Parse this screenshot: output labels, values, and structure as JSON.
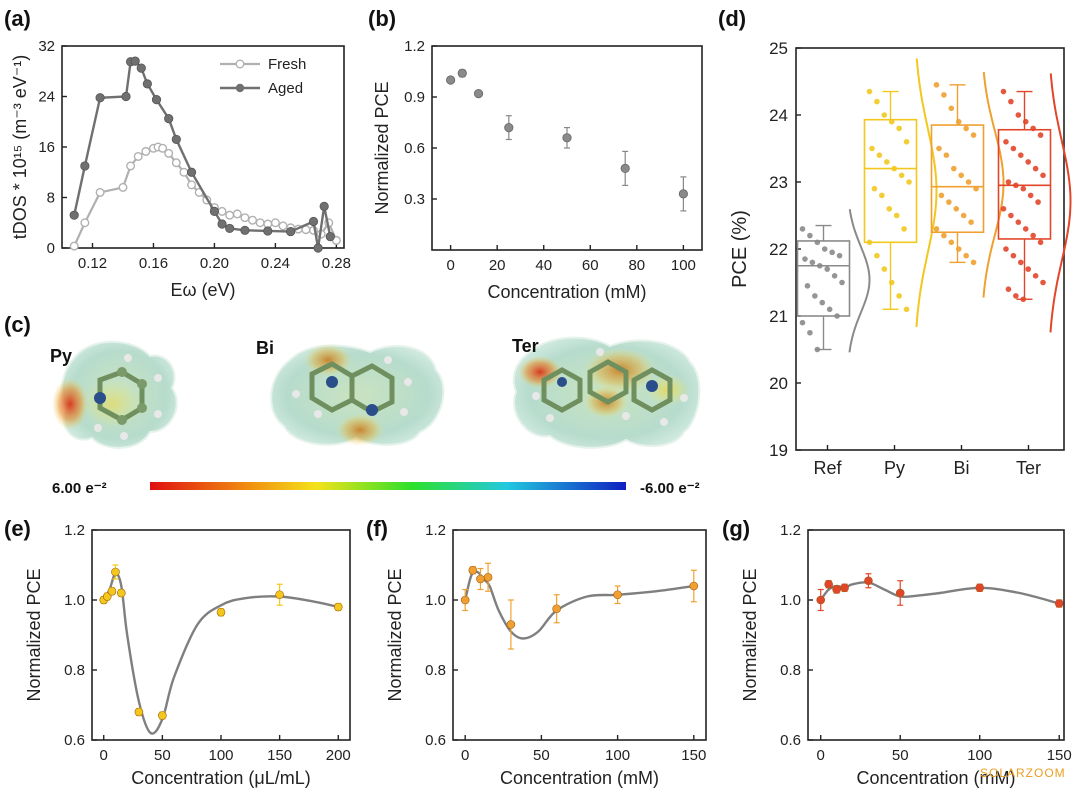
{
  "panels": {
    "a": "(a)",
    "b": "(b)",
    "c": "(c)",
    "d": "(d)",
    "e": "(e)",
    "f": "(f)",
    "g": "(g)"
  },
  "molecules": {
    "py": "Py",
    "bi": "Bi",
    "ter": "Ter"
  },
  "colorbar": {
    "left": "6.00 e⁻²",
    "right": "-6.00 e⁻²"
  },
  "watermark": "SOLARZOOM",
  "colors": {
    "gray_light": "#b0b0b0",
    "gray_dark": "#707070",
    "yellow": "#f2c81e",
    "orange": "#f0a030",
    "red": "#e2462a",
    "curve": "#7f7f7f",
    "ref": "#8a8a8a"
  },
  "chart_data": [
    {
      "id": "a",
      "type": "line",
      "xlabel": "Eω (eV)",
      "ylabel": "tDOS * 10¹⁵ (m⁻³ eV⁻¹)",
      "xlim": [
        0.1,
        0.285
      ],
      "ylim": [
        0,
        32
      ],
      "xticks": [
        0.12,
        0.16,
        0.2,
        0.24,
        0.28
      ],
      "xtick_labels": [
        "0.12",
        "0.16",
        "0.20",
        "0.24",
        "0.28"
      ],
      "yticks": [
        0,
        8,
        16,
        24,
        32
      ],
      "legend_position": "top-right",
      "series": [
        {
          "name": "Fresh",
          "x": [
            0.108,
            0.115,
            0.125,
            0.14,
            0.145,
            0.15,
            0.155,
            0.16,
            0.163,
            0.166,
            0.17,
            0.175,
            0.18,
            0.185,
            0.19,
            0.195,
            0.2,
            0.205,
            0.21,
            0.215,
            0.22,
            0.225,
            0.23,
            0.235,
            0.24,
            0.245,
            0.25,
            0.255,
            0.26,
            0.265,
            0.27,
            0.275,
            0.28
          ],
          "y": [
            0.3,
            4,
            8.8,
            9.6,
            13,
            14.5,
            15.3,
            15.8,
            16,
            15.8,
            15,
            13.5,
            12,
            10,
            8.8,
            7.6,
            6.4,
            5.8,
            5.2,
            5.4,
            4.8,
            4.4,
            4,
            3.8,
            4,
            3.5,
            3.2,
            3,
            2.9,
            2.8,
            2.2,
            4,
            1.2
          ]
        },
        {
          "name": "Aged",
          "x": [
            0.108,
            0.115,
            0.125,
            0.142,
            0.145,
            0.148,
            0.152,
            0.156,
            0.162,
            0.17,
            0.175,
            0.185,
            0.2,
            0.205,
            0.21,
            0.22,
            0.235,
            0.25,
            0.265,
            0.268,
            0.272,
            0.276
          ],
          "y": [
            5.2,
            13,
            23.8,
            24,
            29.5,
            29.6,
            28.5,
            26,
            23.5,
            20.5,
            17.2,
            12,
            5.8,
            3.8,
            3.1,
            2.8,
            2.7,
            2.6,
            4.2,
            0,
            6.6,
            1.8
          ]
        }
      ]
    },
    {
      "id": "b",
      "type": "scatter",
      "xlabel": "Concentration (mM)",
      "ylabel": "Normalized PCE",
      "xlim": [
        -8,
        108
      ],
      "ylim": [
        0.0,
        1.2
      ],
      "xticks": [
        0,
        20,
        40,
        60,
        80,
        100
      ],
      "yticks": [
        0.3,
        0.6,
        0.9,
        1.2
      ],
      "ytick_labels": [
        "0.3",
        "0.6",
        "0.9",
        "1.2"
      ],
      "x": [
        0,
        5,
        12,
        25,
        50,
        75,
        100
      ],
      "y": [
        1.0,
        1.04,
        0.92,
        0.72,
        0.66,
        0.48,
        0.33
      ],
      "err": [
        0.01,
        0.02,
        0.01,
        0.07,
        0.06,
        0.1,
        0.1
      ]
    },
    {
      "id": "d",
      "type": "box",
      "ylabel": "PCE (%)",
      "categories": [
        "Ref",
        "Py",
        "Bi",
        "Ter"
      ],
      "ylim": [
        19,
        25
      ],
      "yticks": [
        19,
        20,
        21,
        22,
        23,
        24,
        25
      ],
      "boxes": [
        {
          "name": "Ref",
          "q1": 21.0,
          "median": 21.75,
          "q3": 22.12,
          "whisker_low": 20.5,
          "whisker_high": 22.35,
          "points": [
            22.3,
            22.2,
            22.1,
            22.0,
            21.95,
            21.9,
            21.85,
            21.8,
            21.75,
            21.7,
            21.6,
            21.5,
            21.45,
            21.3,
            21.2,
            21.1,
            21.0,
            20.9,
            20.75,
            20.5
          ]
        },
        {
          "name": "Py",
          "q1": 22.1,
          "median": 23.2,
          "q3": 23.93,
          "whisker_low": 21.1,
          "whisker_high": 24.35,
          "points": [
            24.35,
            24.2,
            24.0,
            23.9,
            23.8,
            23.6,
            23.5,
            23.4,
            23.3,
            23.2,
            23.1,
            23.0,
            22.9,
            22.8,
            22.6,
            22.5,
            22.3,
            22.1,
            21.9,
            21.7,
            21.5,
            21.3,
            21.1
          ]
        },
        {
          "name": "Bi",
          "q1": 22.25,
          "median": 22.93,
          "q3": 23.85,
          "whisker_low": 21.8,
          "whisker_high": 24.45,
          "points": [
            24.45,
            24.3,
            24.1,
            23.9,
            23.8,
            23.7,
            23.5,
            23.4,
            23.2,
            23.1,
            23.0,
            22.9,
            22.8,
            22.7,
            22.6,
            22.5,
            22.4,
            22.3,
            22.2,
            22.1,
            22.0,
            21.9,
            21.8
          ]
        },
        {
          "name": "Ter",
          "q1": 22.15,
          "median": 22.95,
          "q3": 23.78,
          "whisker_low": 21.25,
          "whisker_high": 24.35,
          "points": [
            24.35,
            24.2,
            24.0,
            23.9,
            23.8,
            23.7,
            23.6,
            23.5,
            23.4,
            23.3,
            23.2,
            23.1,
            23.0,
            22.95,
            22.9,
            22.8,
            22.7,
            22.6,
            22.5,
            22.4,
            22.3,
            22.2,
            22.1,
            22.0,
            21.9,
            21.8,
            21.7,
            21.6,
            21.5,
            21.4,
            21.3,
            21.25
          ]
        }
      ]
    },
    {
      "id": "e",
      "type": "scatter",
      "xlabel": "Concentration (μL/mL)",
      "ylabel": "Normalized PCE",
      "xlim": [
        -10,
        210
      ],
      "ylim": [
        0.6,
        1.2
      ],
      "xticks": [
        0,
        50,
        100,
        150,
        200
      ],
      "yticks": [
        0.6,
        0.8,
        1.0,
        1.2
      ],
      "ytick_labels": [
        "0.6",
        "0.8",
        "1.0",
        "1.2"
      ],
      "x": [
        0,
        3,
        7,
        10,
        15,
        30,
        50,
        100,
        150,
        200
      ],
      "y": [
        1.0,
        1.01,
        1.025,
        1.08,
        1.02,
        0.68,
        0.67,
        0.965,
        1.015,
        0.98
      ],
      "err": [
        0.01,
        0.01,
        0.01,
        0.02,
        0.01,
        0.01,
        0.01,
        0.01,
        0.03,
        0.01
      ],
      "curve_x": [
        0,
        5,
        10,
        15,
        20,
        30,
        40,
        50,
        60,
        80,
        100,
        120,
        150,
        180,
        200
      ],
      "curve_y": [
        1.0,
        1.03,
        1.075,
        1.04,
        0.9,
        0.71,
        0.62,
        0.66,
        0.78,
        0.93,
        0.985,
        1.005,
        1.01,
        0.995,
        0.98
      ]
    },
    {
      "id": "f",
      "type": "scatter",
      "xlabel": "Concentration (mM)",
      "ylabel": "Normalized PCE",
      "xlim": [
        -8,
        158
      ],
      "ylim": [
        0.6,
        1.2
      ],
      "xticks": [
        0,
        50,
        100,
        150
      ],
      "yticks": [
        0.6,
        0.8,
        1.0,
        1.2
      ],
      "ytick_labels": [
        "0.6",
        "0.8",
        "1.0",
        "1.2"
      ],
      "x": [
        0,
        5,
        10,
        15,
        30,
        60,
        100,
        150
      ],
      "y": [
        1.0,
        1.085,
        1.06,
        1.065,
        0.93,
        0.975,
        1.015,
        1.04
      ],
      "err": [
        0.03,
        0.01,
        0.03,
        0.04,
        0.07,
        0.04,
        0.025,
        0.045
      ],
      "curve_x": [
        0,
        4,
        8,
        12,
        16,
        22,
        30,
        38,
        48,
        60,
        80,
        100,
        125,
        150
      ],
      "curve_y": [
        1.0,
        1.07,
        1.08,
        1.06,
        1.04,
        0.97,
        0.91,
        0.89,
        0.91,
        0.97,
        1.01,
        1.015,
        1.025,
        1.04
      ]
    },
    {
      "id": "g",
      "type": "scatter",
      "xlabel": "Concentration (mM)",
      "ylabel": "Normalized PCE",
      "xlim": [
        -8,
        153
      ],
      "ylim": [
        0.6,
        1.2
      ],
      "xticks": [
        0,
        50,
        100,
        150
      ],
      "yticks": [
        0.6,
        0.8,
        1.0,
        1.2
      ],
      "ytick_labels": [
        "0.6",
        "0.8",
        "1.0",
        "1.2"
      ],
      "x": [
        0,
        5,
        10,
        15,
        30,
        50,
        100,
        150
      ],
      "y": [
        1.0,
        1.045,
        1.03,
        1.035,
        1.055,
        1.02,
        1.035,
        0.99
      ],
      "err": [
        0.03,
        0.01,
        0.01,
        0.01,
        0.02,
        0.035,
        0.01,
        0.01
      ],
      "curve_x": [
        0,
        5,
        10,
        15,
        20,
        30,
        40,
        50,
        60,
        75,
        100,
        125,
        150
      ],
      "curve_y": [
        1.0,
        1.03,
        1.04,
        1.035,
        1.045,
        1.05,
        1.03,
        1.01,
        1.012,
        1.02,
        1.035,
        1.02,
        0.99
      ]
    }
  ]
}
